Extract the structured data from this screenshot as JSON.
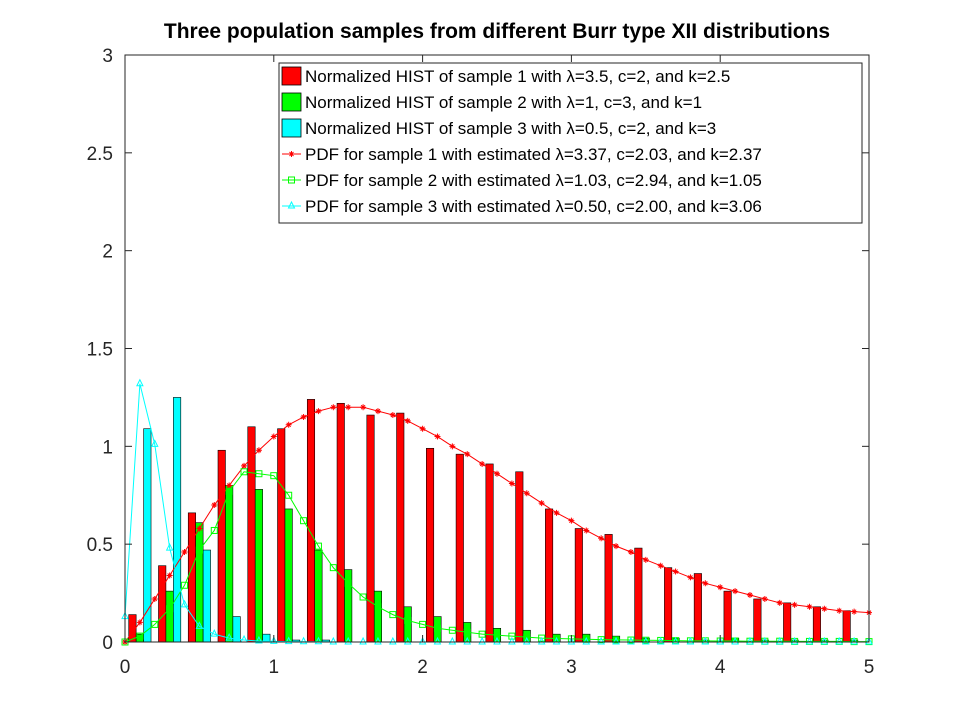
{
  "chart_data": {
    "type": "bar",
    "title": "Three population samples from different Burr type XII distributions",
    "xlabel": "",
    "ylabel": "",
    "xlim": [
      0,
      5
    ],
    "ylim": [
      0,
      3
    ],
    "xticks": [
      0,
      1,
      2,
      3,
      4,
      5
    ],
    "yticks": [
      0,
      0.5,
      1,
      1.5,
      2,
      2.5,
      3
    ],
    "xtick_labels": [
      "0",
      "1",
      "2",
      "3",
      "4",
      "5"
    ],
    "ytick_labels": [
      "0",
      "0.5",
      "1",
      "1.5",
      "2",
      "2.5",
      "3"
    ],
    "grid": false,
    "legend_position": "top-right",
    "histograms": [
      {
        "name": "Normalized HIST of sample 1 with λ=3.5, c=2, and k=2.5",
        "color": "#ff0000",
        "bin_width": 0.2,
        "x": [
          0.05,
          0.25,
          0.45,
          0.65,
          0.85,
          1.05,
          1.25,
          1.45,
          1.65,
          1.85,
          2.05,
          2.25,
          2.45,
          2.65,
          2.85,
          3.05,
          3.25,
          3.45,
          3.65,
          3.85,
          4.05,
          4.25,
          4.45,
          4.65,
          4.85
        ],
        "values": [
          0.14,
          0.39,
          0.66,
          0.98,
          1.1,
          1.09,
          1.24,
          1.22,
          1.16,
          1.17,
          0.99,
          0.96,
          0.91,
          0.87,
          0.68,
          0.58,
          0.55,
          0.48,
          0.38,
          0.35,
          0.26,
          0.22,
          0.2,
          0.18,
          0.16
        ]
      },
      {
        "name": "Normalized HIST of sample 2 with λ=1, c=3, and k=1",
        "color": "#00ff00",
        "bin_width": 0.2,
        "x": [
          0.1,
          0.3,
          0.5,
          0.7,
          0.9,
          1.1,
          1.3,
          1.5,
          1.7,
          1.9,
          2.1,
          2.3,
          2.5,
          2.7,
          2.9,
          3.1,
          3.3,
          3.5,
          3.7,
          3.9,
          4.1,
          4.3,
          4.5,
          4.7,
          4.9
        ],
        "values": [
          0.04,
          0.26,
          0.61,
          0.8,
          0.78,
          0.68,
          0.47,
          0.37,
          0.26,
          0.18,
          0.13,
          0.1,
          0.07,
          0.06,
          0.04,
          0.04,
          0.03,
          0.02,
          0.02,
          0.01,
          0.02,
          0.01,
          0.01,
          0.01,
          0.01
        ]
      },
      {
        "name": "Normalized HIST of sample 3 with λ=0.5, c=2, and k=3",
        "color": "#00ffff",
        "bin_width": 0.2,
        "x": [
          0.15,
          0.35,
          0.55,
          0.75,
          0.95,
          1.15,
          1.35
        ],
        "values": [
          1.09,
          1.25,
          0.47,
          0.13,
          0.04,
          0.01,
          0.01
        ]
      }
    ],
    "series": [
      {
        "name": "PDF for sample 1 with estimated λ=3.37, c=2.03, and k=2.37",
        "color": "#ff0000",
        "marker": "star",
        "x": [
          0,
          0.1,
          0.2,
          0.3,
          0.4,
          0.5,
          0.6,
          0.7,
          0.8,
          0.9,
          1.0,
          1.1,
          1.2,
          1.3,
          1.4,
          1.5,
          1.6,
          1.7,
          1.8,
          1.9,
          2.0,
          2.1,
          2.2,
          2.3,
          2.4,
          2.5,
          2.6,
          2.7,
          2.8,
          2.9,
          3.0,
          3.1,
          3.2,
          3.3,
          3.4,
          3.5,
          3.6,
          3.7,
          3.8,
          3.9,
          4.0,
          4.1,
          4.2,
          4.3,
          4.4,
          4.5,
          4.6,
          4.7,
          4.8,
          4.9,
          5.0
        ],
        "y": [
          0,
          0.1,
          0.22,
          0.34,
          0.46,
          0.58,
          0.7,
          0.8,
          0.9,
          0.98,
          1.05,
          1.11,
          1.15,
          1.18,
          1.2,
          1.2,
          1.2,
          1.18,
          1.16,
          1.13,
          1.09,
          1.05,
          1.0,
          0.96,
          0.91,
          0.86,
          0.81,
          0.76,
          0.71,
          0.66,
          0.62,
          0.57,
          0.53,
          0.49,
          0.46,
          0.42,
          0.39,
          0.36,
          0.33,
          0.3,
          0.28,
          0.26,
          0.24,
          0.22,
          0.2,
          0.19,
          0.18,
          0.17,
          0.16,
          0.155,
          0.15
        ]
      },
      {
        "name": "PDF for sample 2 with estimated λ=1.03, c=2.94, and k=1.05",
        "color": "#00ff00",
        "marker": "square",
        "x": [
          0,
          0.1,
          0.2,
          0.3,
          0.4,
          0.5,
          0.6,
          0.7,
          0.8,
          0.9,
          1.0,
          1.1,
          1.2,
          1.3,
          1.4,
          1.5,
          1.6,
          1.7,
          1.8,
          1.9,
          2.0,
          2.1,
          2.2,
          2.3,
          2.4,
          2.5,
          2.6,
          2.7,
          2.8,
          2.9,
          3.0,
          3.1,
          3.2,
          3.3,
          3.4,
          3.5,
          3.6,
          3.7,
          3.8,
          3.9,
          4.0,
          4.1,
          4.2,
          4.3,
          4.4,
          4.5,
          4.6,
          4.7,
          4.8,
          4.9,
          5.0
        ],
        "y": [
          0,
          0.03,
          0.09,
          0.17,
          0.29,
          0.47,
          0.57,
          0.77,
          0.87,
          0.86,
          0.85,
          0.75,
          0.62,
          0.49,
          0.38,
          0.3,
          0.23,
          0.18,
          0.14,
          0.11,
          0.09,
          0.07,
          0.06,
          0.05,
          0.04,
          0.035,
          0.03,
          0.025,
          0.02,
          0.018,
          0.016,
          0.014,
          0.012,
          0.011,
          0.01,
          0.009,
          0.008,
          0.007,
          0.006,
          0.006,
          0.005,
          0.005,
          0.004,
          0.004,
          0.004,
          0.003,
          0.003,
          0.003,
          0.003,
          0.002,
          0.002
        ]
      },
      {
        "name": "PDF for sample 3 with estimated λ=0.50, c=2.00, and k=3.06",
        "color": "#00ffff",
        "marker": "triangle",
        "x": [
          0,
          0.1,
          0.2,
          0.3,
          0.4,
          0.5,
          0.6,
          0.7,
          0.8,
          0.9,
          1.0,
          1.1,
          1.2,
          1.3,
          1.4,
          1.5,
          1.6,
          1.7,
          1.8,
          1.9,
          2.0,
          2.1,
          2.2,
          2.3,
          2.4,
          2.5,
          2.6,
          2.7,
          2.8,
          2.9,
          3.0,
          3.1,
          3.2,
          3.3,
          3.4,
          3.5,
          3.6,
          3.7,
          3.8,
          3.9,
          4.0,
          4.1,
          4.2,
          4.3,
          4.4,
          4.5,
          4.6,
          4.7,
          4.8,
          4.9,
          5.0
        ],
        "y": [
          0.13,
          1.32,
          1.01,
          0.48,
          0.19,
          0.08,
          0.04,
          0.02,
          0.01,
          0.005,
          0.003,
          0.002,
          0.001,
          0.001,
          0,
          0,
          0,
          0,
          0,
          0,
          0,
          0,
          0,
          0,
          0,
          0,
          0,
          0,
          0,
          0,
          0,
          0,
          0,
          0,
          0,
          0,
          0,
          0,
          0,
          0,
          0,
          0,
          0,
          0,
          0,
          0,
          0,
          0,
          0,
          0,
          0
        ]
      }
    ]
  }
}
